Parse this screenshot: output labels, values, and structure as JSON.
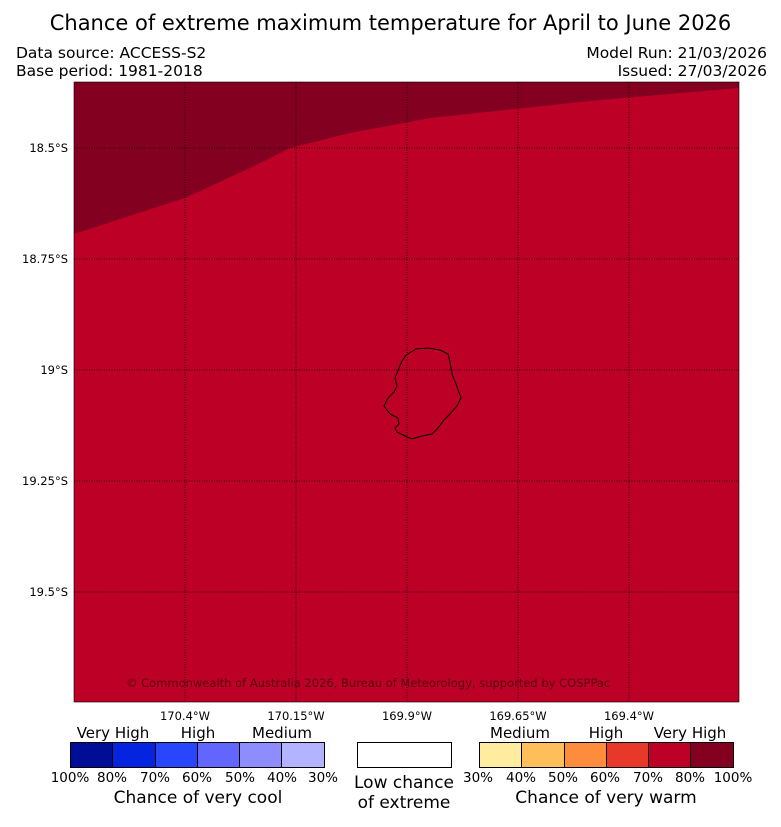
{
  "title": "Chance of extreme maximum temperature for April to June 2026",
  "meta": {
    "data_source": "Data source: ACCESS-S2",
    "base_period": "Base period: 1981-2018",
    "model_run": "Model Run: 21/03/2026",
    "issued": "Issued: 27/03/2026"
  },
  "map": {
    "colors": {
      "very_high_warm": "#840021",
      "high_warm": "#bd0026",
      "land_outline": "#000000"
    },
    "lat_labels": [
      "18.5°S",
      "18.75°S",
      "19°S",
      "19.25°S",
      "19.5°S"
    ],
    "lon_labels": [
      "170.4°W",
      "170.15°W",
      "169.9°W",
      "169.65°W",
      "169.4°W"
    ],
    "copyright": "© Commonwealth of Australia 2026, Bureau of Meteorology, supported by COSPPac"
  },
  "legend": {
    "cool": {
      "categories": [
        "Very High",
        "High",
        "Medium"
      ],
      "colors": [
        "#000e97",
        "#0424e0",
        "#2846fc",
        "#6366fc",
        "#8d8dfd",
        "#b3b3ff"
      ],
      "percents": [
        "100%",
        "80%",
        "70%",
        "60%",
        "50%",
        "40%",
        "30%"
      ],
      "title": "Chance of very cool"
    },
    "low": {
      "line1": "Low chance",
      "line2": "of extreme"
    },
    "warm": {
      "categories": [
        "Medium",
        "High",
        "Very High"
      ],
      "colors": [
        "#ffec9f",
        "#febf5a",
        "#fd8d3c",
        "#e8382a",
        "#bd0026",
        "#840021"
      ],
      "percents": [
        "30%",
        "40%",
        "50%",
        "60%",
        "70%",
        "80%",
        "100%"
      ],
      "title": "Chance of very warm"
    }
  }
}
